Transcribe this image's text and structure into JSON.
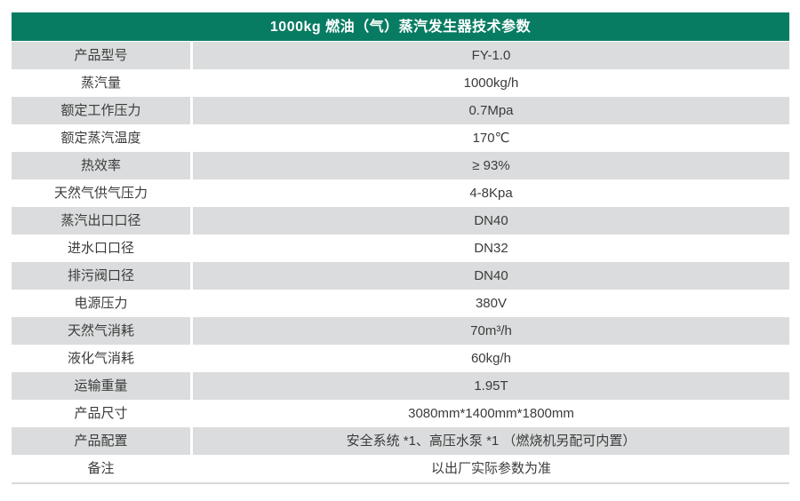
{
  "header": {
    "title": "1000kg 燃油（气）蒸汽发生器技术参数"
  },
  "colors": {
    "header_bg": "#087c62",
    "row_shade": "#dbdcdd",
    "text": "#3b3b3b",
    "header_text": "#ffffff",
    "bottom_line": "#d8d8d8",
    "page_bg": "#ffffff"
  },
  "table": {
    "rows": [
      {
        "label": "产品型号",
        "value": "FY-1.0"
      },
      {
        "label": "蒸汽量",
        "value": "1000kg/h"
      },
      {
        "label": "额定工作压力",
        "value": "0.7Mpa"
      },
      {
        "label": "额定蒸汽温度",
        "value": "170℃"
      },
      {
        "label": "热效率",
        "value": "≥ 93%"
      },
      {
        "label": "天然气供气压力",
        "value": "4-8Kpa"
      },
      {
        "label": "蒸汽出口口径",
        "value": "DN40"
      },
      {
        "label": "进水口口径",
        "value": "DN32"
      },
      {
        "label": "排污阀口径",
        "value": "DN40"
      },
      {
        "label": "电源压力",
        "value": "380V"
      },
      {
        "label": "天然气消耗",
        "value": "70m³/h"
      },
      {
        "label": "液化气消耗",
        "value": "60kg/h"
      },
      {
        "label": "运输重量",
        "value": "1.95T"
      },
      {
        "label": "产品尺寸",
        "value": "3080mm*1400mm*1800mm"
      },
      {
        "label": "产品配置",
        "value": "安全系统 *1、高压水泵 *1 （燃烧机另配可内置）"
      },
      {
        "label": "备注",
        "value": "以出厂实际参数为准"
      }
    ]
  }
}
